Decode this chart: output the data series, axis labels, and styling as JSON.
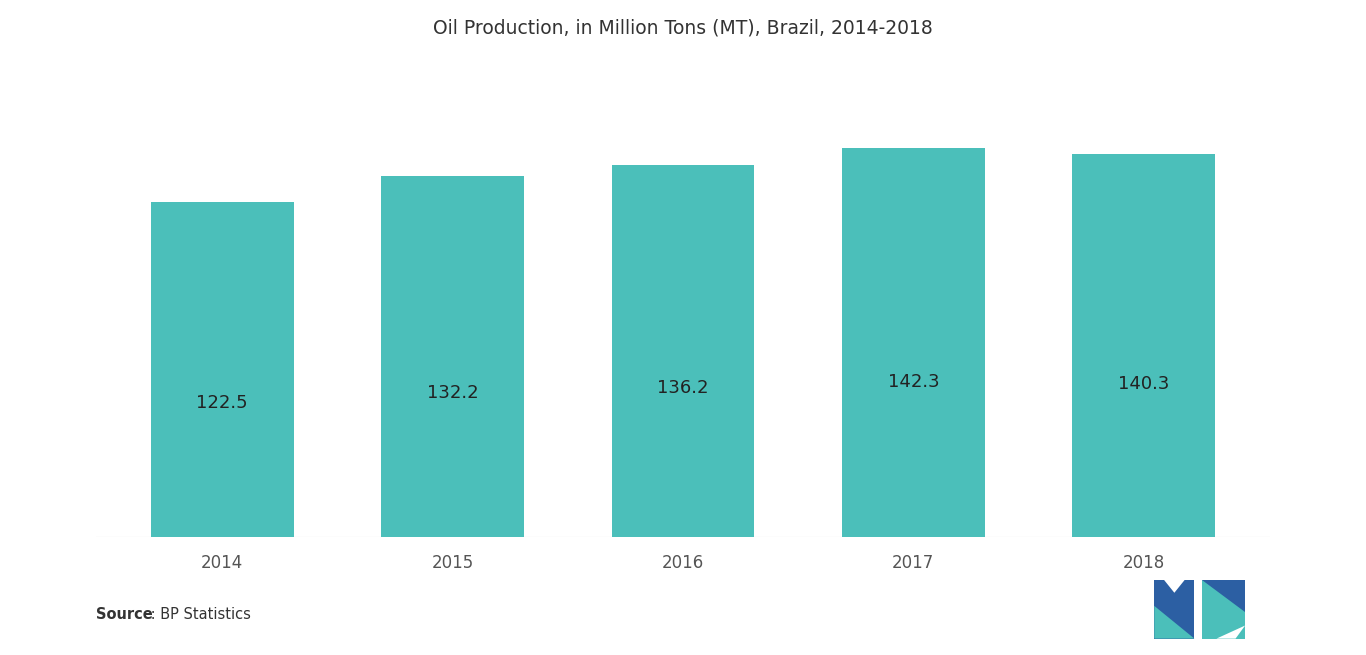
{
  "title": "Oil Production, in Million Tons (MT), Brazil, 2014-2018",
  "categories": [
    "2014",
    "2015",
    "2016",
    "2017",
    "2018"
  ],
  "values": [
    122.5,
    132.2,
    136.2,
    142.3,
    140.3
  ],
  "bar_color": "#4BBFBA",
  "label_color": "#222222",
  "background_color": "#ffffff",
  "title_fontsize": 13.5,
  "label_fontsize": 13,
  "tick_fontsize": 12,
  "source_bold": "Source",
  "source_rest": " : BP Statistics",
  "ylim": [
    0,
    175
  ],
  "bar_width": 0.62
}
